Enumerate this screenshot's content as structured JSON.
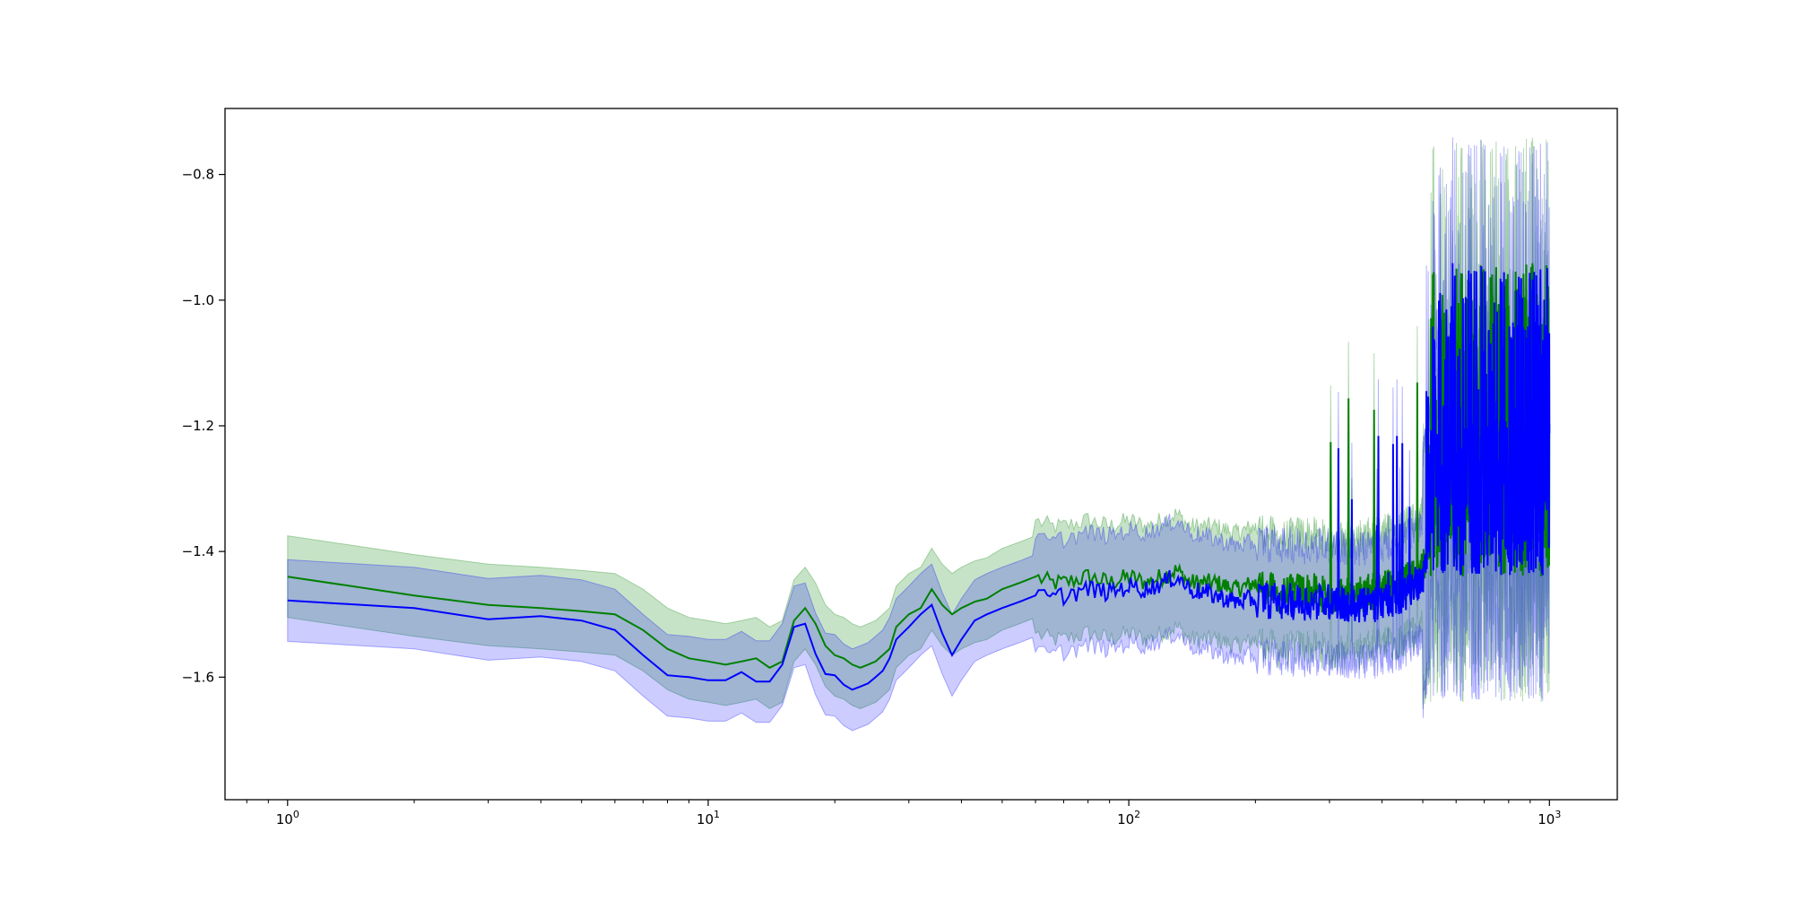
{
  "chart_data": {
    "type": "line",
    "title": "",
    "xlabel": "",
    "ylabel": "",
    "xscale": "log",
    "xlim": [
      0.71,
      1450
    ],
    "ylim": [
      -1.795,
      -0.695
    ],
    "grid": false,
    "legend": "none",
    "x_ticks": [
      {
        "value": 1,
        "base": "10",
        "exp": "0"
      },
      {
        "value": 10,
        "base": "10",
        "exp": "1"
      },
      {
        "value": 100,
        "base": "10",
        "exp": "2"
      },
      {
        "value": 1000,
        "base": "10",
        "exp": "3"
      }
    ],
    "y_ticks": [
      {
        "value": -1.6,
        "label": "−1.6"
      },
      {
        "value": -1.4,
        "label": "−1.4"
      },
      {
        "value": -1.2,
        "label": "−1.2"
      },
      {
        "value": -1.0,
        "label": "−1.0"
      },
      {
        "value": -0.8,
        "label": "−0.8"
      }
    ],
    "series": [
      {
        "color": "#008000",
        "band_color": "#008000",
        "band_opacity": 0.22,
        "band_width_low": 0.065,
        "band_width_high": 0.2,
        "x": [
          1,
          2,
          3,
          4,
          5,
          6,
          7,
          8,
          9,
          10,
          11,
          12,
          13,
          14,
          15,
          16,
          17,
          18,
          19,
          20,
          21,
          22,
          23,
          24,
          25,
          26,
          27,
          28,
          30,
          32,
          34,
          36,
          38,
          40,
          43,
          46,
          50,
          55,
          60,
          65,
          70,
          80,
          90,
          100,
          110,
          120,
          130,
          140,
          160,
          180,
          200,
          230,
          260,
          300,
          350,
          400,
          450,
          500,
          550,
          600,
          700,
          800,
          900,
          1000
        ],
        "y": [
          -1.44,
          -1.47,
          -1.485,
          -1.49,
          -1.495,
          -1.5,
          -1.525,
          -1.555,
          -1.57,
          -1.575,
          -1.58,
          -1.575,
          -1.57,
          -1.585,
          -1.575,
          -1.51,
          -1.49,
          -1.515,
          -1.55,
          -1.565,
          -1.57,
          -1.58,
          -1.585,
          -1.58,
          -1.575,
          -1.565,
          -1.555,
          -1.52,
          -1.5,
          -1.49,
          -1.46,
          -1.485,
          -1.5,
          -1.49,
          -1.48,
          -1.475,
          -1.46,
          -1.45,
          -1.44,
          -1.45,
          -1.45,
          -1.44,
          -1.45,
          -1.44,
          -1.45,
          -1.44,
          -1.43,
          -1.45,
          -1.45,
          -1.46,
          -1.45,
          -1.47,
          -1.46,
          -1.47,
          -1.47,
          -1.46,
          -1.45,
          -1.43,
          -1.3,
          -1.25,
          -1.2,
          -1.2,
          -1.18,
          -1.2
        ]
      },
      {
        "color": "#0000ff",
        "band_color": "#0000ff",
        "band_opacity": 0.2,
        "band_width_low": 0.065,
        "band_width_high": 0.2,
        "x": [
          1,
          2,
          3,
          4,
          5,
          6,
          7,
          8,
          9,
          10,
          11,
          12,
          13,
          14,
          15,
          16,
          17,
          18,
          19,
          20,
          21,
          22,
          23,
          24,
          25,
          26,
          27,
          28,
          30,
          32,
          34,
          36,
          38,
          40,
          43,
          46,
          50,
          55,
          60,
          65,
          70,
          80,
          90,
          100,
          110,
          120,
          130,
          140,
          160,
          180,
          200,
          230,
          260,
          300,
          350,
          400,
          450,
          500,
          550,
          600,
          700,
          800,
          900,
          1000
        ],
        "y": [
          -1.478,
          -1.49,
          -1.508,
          -1.503,
          -1.51,
          -1.525,
          -1.565,
          -1.597,
          -1.6,
          -1.605,
          -1.605,
          -1.592,
          -1.607,
          -1.607,
          -1.58,
          -1.52,
          -1.515,
          -1.563,
          -1.595,
          -1.597,
          -1.612,
          -1.62,
          -1.615,
          -1.61,
          -1.6,
          -1.59,
          -1.57,
          -1.54,
          -1.52,
          -1.5,
          -1.485,
          -1.53,
          -1.565,
          -1.54,
          -1.51,
          -1.5,
          -1.49,
          -1.48,
          -1.47,
          -1.475,
          -1.47,
          -1.46,
          -1.465,
          -1.455,
          -1.46,
          -1.45,
          -1.44,
          -1.46,
          -1.47,
          -1.48,
          -1.475,
          -1.48,
          -1.48,
          -1.48,
          -1.49,
          -1.48,
          -1.47,
          -1.44,
          -1.3,
          -1.25,
          -1.2,
          -1.19,
          -1.18,
          -1.2
        ]
      }
    ]
  }
}
